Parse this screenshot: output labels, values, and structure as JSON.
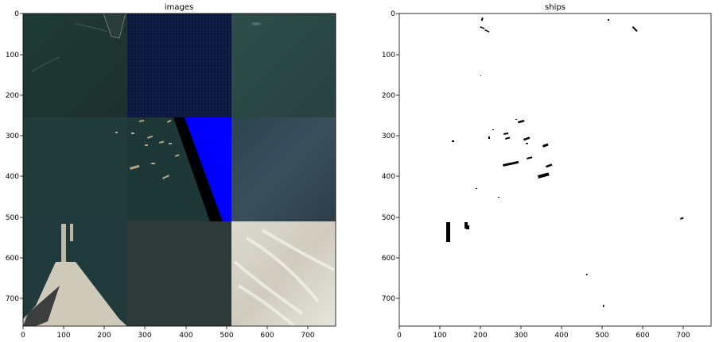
{
  "figure": {
    "panels": [
      {
        "id": "images",
        "title": "images",
        "x_ticks": [
          "0",
          "100",
          "200",
          "300",
          "400",
          "500",
          "600",
          "700"
        ],
        "y_ticks": [
          "0",
          "100",
          "200",
          "300",
          "400",
          "500",
          "600",
          "700"
        ],
        "tiles": [
          {
            "row": 0,
            "col": 0,
            "description": "dark teal harbor water with pier"
          },
          {
            "row": 0,
            "col": 1,
            "description": "dark navy noise"
          },
          {
            "row": 0,
            "col": 2,
            "description": "dark slate-green water"
          },
          {
            "row": 1,
            "col": 0,
            "description": "dark teal open water"
          },
          {
            "row": 1,
            "col": 1,
            "description": "water with many small boats and a black/blue diagonal edge"
          },
          {
            "row": 1,
            "col": 2,
            "description": "slate blue water"
          },
          {
            "row": 2,
            "col": 0,
            "description": "harbor breakwater and jetty"
          },
          {
            "row": 2,
            "col": 1,
            "description": "grey-green water"
          },
          {
            "row": 2,
            "col": 2,
            "description": "light beige foamy water"
          }
        ]
      },
      {
        "id": "ships",
        "title": "ships",
        "x_ticks": [
          "0",
          "100",
          "200",
          "300",
          "400",
          "500",
          "600",
          "700"
        ],
        "y_ticks": [
          "0",
          "100",
          "200",
          "300",
          "400",
          "500",
          "600",
          "700"
        ],
        "mask_color": "#000000",
        "background": "#ffffff"
      }
    ],
    "colors": {
      "water_dark": "#1d3a38",
      "navy": "#0c1a40",
      "blue_wedge": "#0000ff"
    }
  }
}
